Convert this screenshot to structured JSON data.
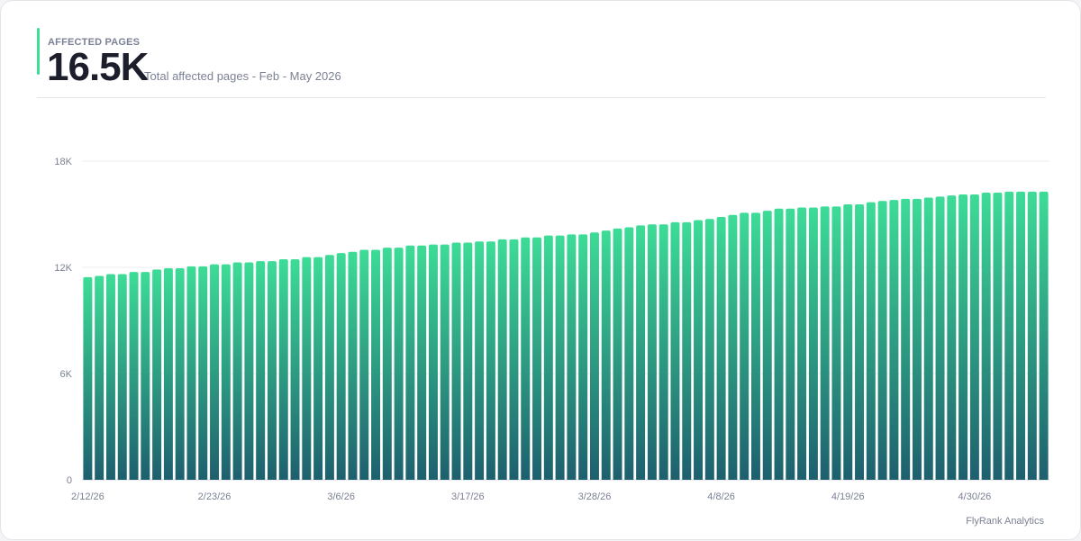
{
  "header": {
    "label": "AFFECTED PAGES",
    "value": "16.5K",
    "subtitle": "Total affected pages - Feb - May 2026"
  },
  "footer": {
    "brand": "FlyRank Analytics"
  },
  "colors": {
    "accent": "#3ddc97",
    "bar_top": "#3ddc97",
    "bar_bottom": "#1e5f6e"
  },
  "chart_data": {
    "type": "bar",
    "title": "",
    "xlabel": "",
    "ylabel": "",
    "ylim": [
      0,
      18000
    ],
    "yticks": [
      0,
      6000,
      12000,
      18000
    ],
    "ytick_labels": [
      "0",
      "6K",
      "12K",
      "18K"
    ],
    "xtick_labels": [
      "2/12/26",
      "2/23/26",
      "3/6/26",
      "3/17/26",
      "3/28/26",
      "4/8/26",
      "4/19/26",
      "4/30/26"
    ],
    "xtick_every": 11,
    "grid": true,
    "legend": "none",
    "categories": [
      "2/12/26",
      "2/13/26",
      "2/14/26",
      "2/15/26",
      "2/16/26",
      "2/17/26",
      "2/18/26",
      "2/19/26",
      "2/20/26",
      "2/21/26",
      "2/22/26",
      "2/23/26",
      "2/24/26",
      "2/25/26",
      "2/26/26",
      "2/27/26",
      "2/28/26",
      "3/1/26",
      "3/2/26",
      "3/3/26",
      "3/4/26",
      "3/5/26",
      "3/6/26",
      "3/7/26",
      "3/8/26",
      "3/9/26",
      "3/10/26",
      "3/11/26",
      "3/12/26",
      "3/13/26",
      "3/14/26",
      "3/15/26",
      "3/16/26",
      "3/17/26",
      "3/18/26",
      "3/19/26",
      "3/20/26",
      "3/21/26",
      "3/22/26",
      "3/23/26",
      "3/24/26",
      "3/25/26",
      "3/26/26",
      "3/27/26",
      "3/28/26",
      "3/29/26",
      "3/30/26",
      "3/31/26",
      "4/1/26",
      "4/2/26",
      "4/3/26",
      "4/4/26",
      "4/5/26",
      "4/6/26",
      "4/7/26",
      "4/8/26",
      "4/9/26",
      "4/10/26",
      "4/11/26",
      "4/12/26",
      "4/13/26",
      "4/14/26",
      "4/15/26",
      "4/16/26",
      "4/17/26",
      "4/18/26",
      "4/19/26",
      "4/20/26",
      "4/21/26",
      "4/22/26",
      "4/23/26",
      "4/24/26",
      "4/25/26",
      "4/26/26",
      "4/27/26",
      "4/28/26",
      "4/29/26",
      "4/30/26",
      "5/1/26",
      "5/2/26",
      "5/3/26",
      "5/4/26",
      "5/5/26",
      "5/6/26"
    ],
    "values": [
      11450,
      11520,
      11620,
      11620,
      11740,
      11740,
      11880,
      11950,
      11950,
      12060,
      12060,
      12170,
      12170,
      12280,
      12280,
      12350,
      12350,
      12460,
      12460,
      12580,
      12580,
      12700,
      12810,
      12880,
      12990,
      12990,
      13110,
      13110,
      13230,
      13230,
      13290,
      13290,
      13400,
      13400,
      13460,
      13460,
      13580,
      13580,
      13690,
      13690,
      13800,
      13800,
      13860,
      13860,
      13970,
      14080,
      14190,
      14260,
      14370,
      14430,
      14430,
      14550,
      14550,
      14670,
      14730,
      14850,
      14960,
      15080,
      15080,
      15200,
      15320,
      15320,
      15380,
      15380,
      15440,
      15440,
      15560,
      15560,
      15680,
      15750,
      15810,
      15870,
      15870,
      15940,
      16000,
      16060,
      16120,
      16120,
      16220,
      16220,
      16280,
      16280,
      16280,
      16280
    ]
  }
}
